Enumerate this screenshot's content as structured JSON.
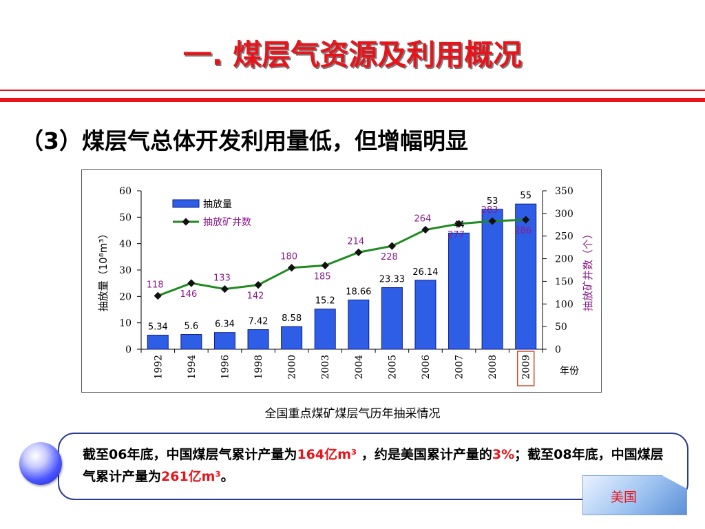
{
  "slide": {
    "title": "一. 煤层气资源及利用概况",
    "subtitle": "（3）煤层气总体开发利用量低，但增幅明显",
    "caption": "全国重点煤矿煤层气历年抽采情况",
    "note": {
      "p1": "截至06年底，中国煤层气累计产量为",
      "v1": "164亿m³",
      "p2": " ，约是美国累计产量的",
      "v2": "3%",
      "p3": "；截至08年底，中国煤层气累计产量为",
      "v3": "261亿m³",
      "p4": "。"
    },
    "us_button": "美国"
  },
  "chart_data": {
    "type": "bar",
    "categories": [
      "1992",
      "1994",
      "1996",
      "1998",
      "2000",
      "2003",
      "2004",
      "2005",
      "2006",
      "2007",
      "2008",
      "2009"
    ],
    "series": [
      {
        "name": "抽放量",
        "type": "bar",
        "axis": "left",
        "values": [
          5.34,
          5.6,
          6.34,
          7.42,
          8.58,
          15.2,
          18.66,
          23.33,
          26.14,
          44,
          53,
          55
        ],
        "labels": [
          "5.34",
          "5.6",
          "6.34",
          "7.42",
          "8.58",
          "15.2",
          "18.66",
          "23.33",
          "26.14",
          "44",
          "53",
          "55"
        ]
      },
      {
        "name": "抽放矿井数",
        "type": "line",
        "axis": "right",
        "values": [
          118,
          146,
          133,
          142,
          180,
          185,
          214,
          228,
          264,
          277,
          283,
          286
        ],
        "labels": [
          "118",
          "146",
          "133",
          "142",
          "180",
          "185",
          "214",
          "228",
          "264",
          "277",
          "283",
          "286"
        ]
      }
    ],
    "xlabel": "年份",
    "ylabel_left": "抽放量（10⁸m³）",
    "ylabel_right": "抽放矿井数（个）",
    "ylim_left": [
      0,
      60
    ],
    "yticks_left": [
      0,
      10,
      20,
      30,
      40,
      50,
      60
    ],
    "ylim_right": [
      0,
      350
    ],
    "yticks_right": [
      0,
      50,
      100,
      150,
      200,
      250,
      300,
      350
    ],
    "highlighted_category": "2009",
    "legend_position": "top-left",
    "grid": false,
    "colors": {
      "bar": "#2f5ee6",
      "bar_edge": "#0a1a8c",
      "line": "#1f8a1f",
      "marker": "#111111",
      "line_label": "#8b1a8b",
      "highlight_box": "#c8502a"
    }
  }
}
